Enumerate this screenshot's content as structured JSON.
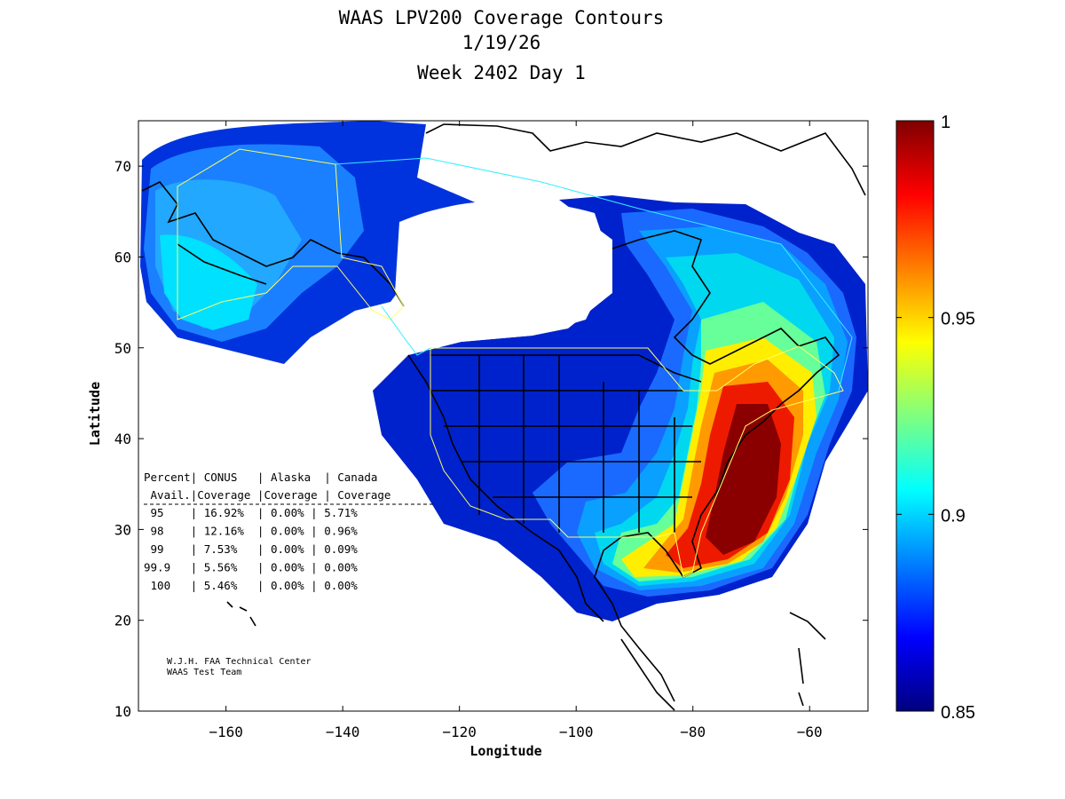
{
  "title": {
    "line1": "WAAS LPV200 Coverage Contours",
    "line2": "1/19/26",
    "line3": "Week 2402 Day 1"
  },
  "axes": {
    "xlabel": "Longitude",
    "ylabel": "Latitude",
    "xticks": [
      -160,
      -140,
      -120,
      -100,
      -80,
      -60
    ],
    "yticks": [
      10,
      20,
      30,
      40,
      50,
      60,
      70
    ],
    "xlim": [
      -175,
      -50
    ],
    "ylim": [
      10,
      75
    ]
  },
  "colorbar": {
    "min_label": "0.85",
    "max_label": "1",
    "ticks": [
      "1",
      "0.95",
      "0.9",
      "0.85"
    ],
    "tick_values": [
      1.0,
      0.95,
      0.9,
      0.85
    ],
    "range": [
      0.85,
      1.0
    ],
    "stops": [
      "#00007f",
      "#0000ff",
      "#007fff",
      "#00ffff",
      "#7fff7f",
      "#ffff00",
      "#ff7f00",
      "#ff0000",
      "#7f0000"
    ]
  },
  "stats_table": {
    "header1": "Percent| CONUS   | Alaska  | Canada",
    "header2": " Avail.|Coverage |Coverage | Coverage",
    "rows": [
      {
        "avail": "95",
        "conus": "16.92%",
        "alaska": "0.00%",
        "canada": "5.71%"
      },
      {
        "avail": "98",
        "conus": "12.16%",
        "alaska": "0.00%",
        "canada": "0.96%"
      },
      {
        "avail": "99",
        "conus": "7.53%",
        "alaska": "0.00%",
        "canada": "0.09%"
      },
      {
        "avail": "99.9",
        "conus": "5.56%",
        "alaska": "0.00%",
        "canada": "0.00%"
      },
      {
        "avail": "100",
        "conus": "5.46%",
        "alaska": "0.00%",
        "canada": "0.00%"
      }
    ]
  },
  "credit": {
    "line1": "W.J.H. FAA Technical Center",
    "line2": "WAAS Test Team"
  }
}
